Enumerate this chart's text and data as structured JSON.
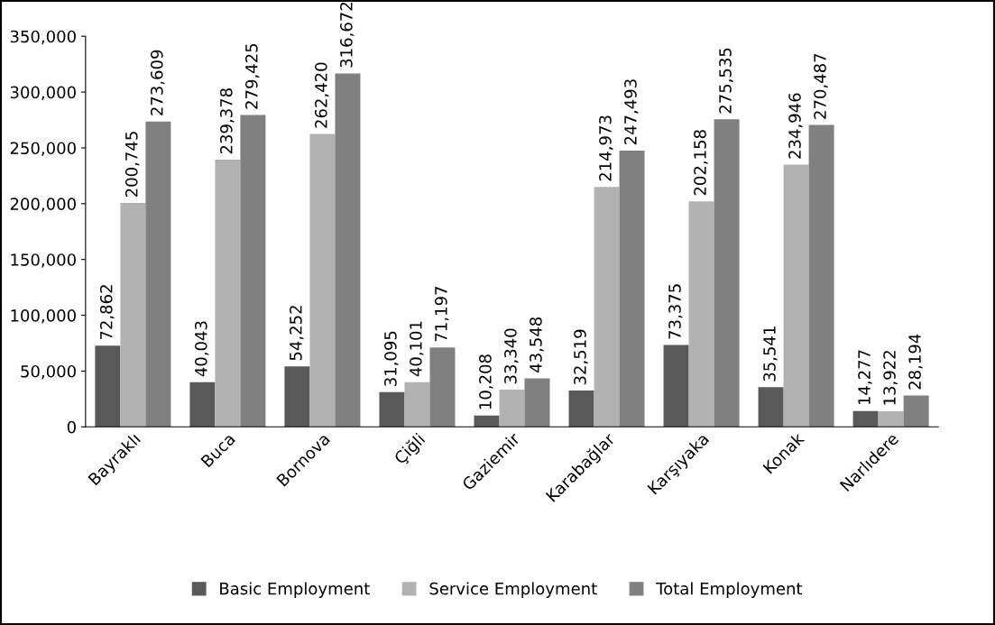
{
  "chart_data": {
    "type": "bar",
    "categories": [
      "Bayraklı",
      "Buca",
      "Bornova",
      "Çiğli",
      "Gaziemir",
      "Karabağlar",
      "Karşıyaka",
      "Konak",
      "Narlıdere"
    ],
    "series": [
      {
        "name": "Basic Employment",
        "color": "#595959",
        "values": [
          72862,
          40043,
          54252,
          31095,
          10208,
          32519,
          73375,
          35541,
          14277
        ],
        "value_labels": [
          "72,862",
          "40,043",
          "54,252",
          "31,095",
          "10,208",
          "32,519",
          "73,375",
          "35,541",
          "14,277"
        ]
      },
      {
        "name": "Service Employment",
        "color": "#b2b2b2",
        "values": [
          200745,
          239378,
          262420,
          40101,
          33340,
          214973,
          202158,
          234946,
          13922
        ],
        "value_labels": [
          "200,745",
          "239,378",
          "262,420",
          "40,101",
          "33,340",
          "214,973",
          "202,158",
          "234,946",
          "13,922"
        ]
      },
      {
        "name": "Total Employment",
        "color": "#808080",
        "values": [
          273609,
          279425,
          316672,
          71197,
          43548,
          247493,
          275535,
          270487,
          28194
        ],
        "value_labels": [
          "273,609",
          "279,425",
          "316,672",
          "71,197",
          "43,548",
          "247,493",
          "275,535",
          "270,487",
          "28,194"
        ]
      }
    ],
    "ylim": [
      0,
      350000
    ],
    "yticks": [
      {
        "value": 0,
        "label": "0"
      },
      {
        "value": 50000,
        "label": "50,000"
      },
      {
        "value": 100000,
        "label": "100,000"
      },
      {
        "value": 150000,
        "label": "150,000"
      },
      {
        "value": 200000,
        "label": "200,000"
      },
      {
        "value": 250000,
        "label": "250,000"
      },
      {
        "value": 300000,
        "label": "300,000"
      },
      {
        "value": 350000,
        "label": "350,000"
      }
    ],
    "grid": false,
    "legend": "bottom"
  }
}
